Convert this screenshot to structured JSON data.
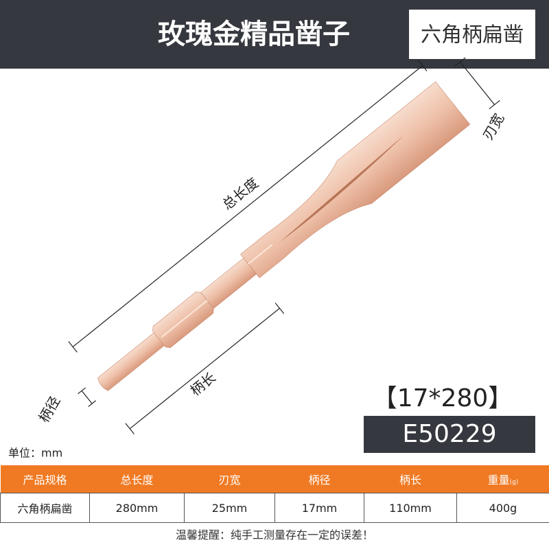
{
  "header": {
    "title": "玫瑰金精品凿子",
    "badge": "六角柄扁凿"
  },
  "diagram": {
    "total_length": "总长度",
    "blade_width": "刃宽",
    "shank_length": "柄长",
    "shank_diameter": "柄径"
  },
  "product": {
    "spec": "【17*280】",
    "model": "E50229"
  },
  "unit_note": "单位：mm",
  "table": {
    "headers": [
      "产品规格",
      "总长度",
      "刃宽",
      "柄径",
      "柄长",
      "重量"
    ],
    "weight_unit": "(g)",
    "rows": [
      [
        "六角柄扁凿",
        "280mm",
        "25mm",
        "17mm",
        "110mm",
        "400g"
      ]
    ]
  },
  "footer": "温馨提醒：纯手工测量存在一定的误差！"
}
